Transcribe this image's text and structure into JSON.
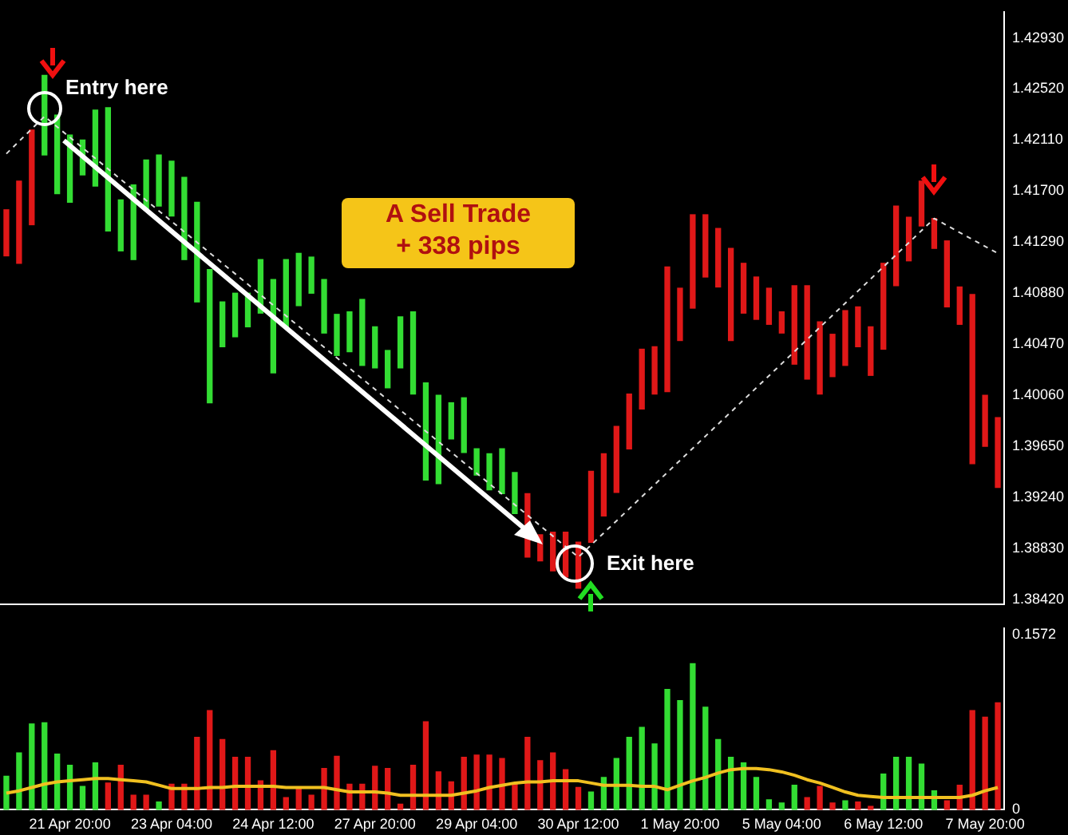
{
  "chart_data": [
    {
      "type": "bar",
      "tick_labels": "y",
      "categories": [
        null,
        null,
        null,
        null,
        null,
        null,
        null,
        null,
        null,
        null,
        null,
        null,
        null,
        null,
        null,
        null,
        null,
        null,
        null,
        null,
        null,
        null,
        null,
        null,
        null,
        null,
        null,
        null,
        null,
        null,
        null,
        null,
        null,
        null,
        null,
        null,
        null,
        null,
        null,
        null,
        null,
        null,
        null,
        null,
        null,
        null,
        null,
        null,
        null,
        null,
        null,
        null,
        null,
        null,
        null,
        null,
        null,
        null,
        null,
        null,
        null,
        null,
        null,
        null,
        null,
        null,
        null,
        null,
        null,
        null,
        null,
        null,
        null,
        null,
        null,
        null,
        null,
        null,
        null
      ],
      "ylim": [
        1.3838,
        1.4314
      ],
      "yticks": [
        {
          "value": 1.3842,
          "label": "1.38420"
        },
        {
          "value": 1.3883,
          "label": "1.38830"
        },
        {
          "value": 1.3924,
          "label": "1.39240"
        },
        {
          "value": 1.3965,
          "label": "1.39650"
        },
        {
          "value": 1.4006,
          "label": "1.40060"
        },
        {
          "value": 1.4047,
          "label": "1.40470"
        },
        {
          "value": 1.4088,
          "label": "1.40880"
        },
        {
          "value": 1.4129,
          "label": "1.41290"
        },
        {
          "value": 1.417,
          "label": "1.41700"
        },
        {
          "value": 1.4211,
          "label": "1.42110"
        },
        {
          "value": 1.4252,
          "label": "1.42520"
        },
        {
          "value": 1.4293,
          "label": "1.42930"
        }
      ],
      "annotations": [
        "Entry here",
        "A Sell Trade",
        "+ 338 pips",
        "Exit here"
      ],
      "series": [
        {
          "colors": [
            "#e01818",
            "#e01818",
            "#e01818",
            "#33dd33",
            "#33dd33",
            "#33dd33",
            "#33dd33",
            "#33dd33",
            "#33dd33",
            "#33dd33",
            "#33dd33",
            "#33dd33",
            "#33dd33",
            "#33dd33",
            "#33dd33",
            "#33dd33",
            "#33dd33",
            "#33dd33",
            "#33dd33",
            "#33dd33",
            "#33dd33",
            "#33dd33",
            "#33dd33",
            "#33dd33",
            "#33dd33",
            "#33dd33",
            "#33dd33",
            "#33dd33",
            "#33dd33",
            "#33dd33",
            "#33dd33",
            "#33dd33",
            "#33dd33",
            "#33dd33",
            "#33dd33",
            "#33dd33",
            "#33dd33",
            "#33dd33",
            "#33dd33",
            "#33dd33",
            "#33dd33",
            "#e01818",
            "#e01818",
            "#e01818",
            "#e01818",
            "#e01818",
            "#e01818",
            "#e01818",
            "#e01818",
            "#e01818",
            "#e01818",
            "#e01818",
            "#e01818",
            "#e01818",
            "#e01818",
            "#e01818",
            "#e01818",
            "#e01818",
            "#e01818",
            "#e01818",
            "#e01818",
            "#e01818",
            "#e01818",
            "#e01818",
            "#e01818",
            "#e01818",
            "#e01818",
            "#e01818",
            "#e01818",
            "#e01818",
            "#e01818",
            "#e01818",
            "#e01818",
            "#e01818",
            "#e01818",
            "#e01818",
            "#e01818",
            "#e01818",
            "#e01818"
          ],
          "base": [
            1.4118,
            1.4112,
            1.4143,
            1.4199,
            1.4168,
            1.4161,
            1.4183,
            1.4174,
            1.4138,
            1.4122,
            1.4115,
            1.4155,
            1.4158,
            1.415,
            1.4115,
            1.4081,
            1.4,
            1.4045,
            1.4053,
            1.4061,
            1.4072,
            1.4024,
            1.4061,
            1.4078,
            1.4088,
            1.4056,
            1.4038,
            1.4041,
            1.403,
            1.4028,
            1.4012,
            1.4028,
            1.4007,
            1.3938,
            1.3935,
            1.3971,
            1.396,
            1.3942,
            1.393,
            1.3927,
            1.3911,
            1.3876,
            1.3873,
            1.3865,
            1.386,
            1.3851,
            1.3888,
            1.3909,
            1.3928,
            1.3963,
            1.3995,
            1.4007,
            1.4009,
            1.405,
            1.4076,
            1.4101,
            1.4093,
            1.405,
            1.4072,
            1.4067,
            1.4063,
            1.4056,
            1.4031,
            1.4019,
            1.4007,
            1.4021,
            1.403,
            1.4045,
            1.4022,
            1.4043,
            1.4094,
            1.4114,
            1.4142,
            1.4124,
            1.4077,
            1.4063,
            1.3951,
            1.3965,
            1.3932
          ],
          "values": [
            0.0037,
            0.0066,
            0.0076,
            0.0064,
            0.0063,
            0.0054,
            0.0028,
            0.0061,
            0.0099,
            0.0041,
            0.006,
            0.004,
            0.0041,
            0.0044,
            0.0066,
            0.008,
            0.0107,
            0.0036,
            0.0035,
            0.0027,
            0.0043,
            0.0075,
            0.0054,
            0.0042,
            0.0029,
            0.0043,
            0.0033,
            0.0032,
            0.0053,
            0.0033,
            0.003,
            0.0041,
            0.0066,
            0.0078,
            0.0071,
            0.0029,
            0.0044,
            0.0021,
            0.0029,
            0.0036,
            0.0033,
            0.0051,
            0.0021,
            0.0031,
            0.0036,
            0.0037,
            0.0057,
            0.005,
            0.0053,
            0.0044,
            0.0048,
            0.0038,
            0.01,
            0.0042,
            0.0075,
            0.005,
            0.0047,
            0.0074,
            0.004,
            0.0034,
            0.0029,
            0.0017,
            0.0063,
            0.0075,
            0.0058,
            0.0034,
            0.0044,
            0.0032,
            0.0039,
            0.0069,
            0.0064,
            0.0035,
            0.0036,
            0.0024,
            0.0053,
            0.003,
            0.0136,
            0.0041,
            0.0056
          ]
        },
        {
          "type": "line",
          "color": "#dddddd",
          "line_style": "dashed",
          "marker": "none",
          "values": [
            1.42,
            null,
            null,
            1.423,
            null,
            null,
            null,
            null,
            null,
            null,
            null,
            null,
            null,
            null,
            null,
            null,
            null,
            null,
            null,
            null,
            null,
            null,
            null,
            null,
            null,
            null,
            null,
            null,
            null,
            null,
            null,
            null,
            null,
            null,
            null,
            null,
            null,
            null,
            null,
            null,
            null,
            null,
            null,
            null,
            null,
            1.3876,
            null,
            null,
            null,
            null,
            null,
            null,
            null,
            null,
            null,
            null,
            null,
            null,
            null,
            null,
            null,
            null,
            null,
            null,
            null,
            null,
            null,
            null,
            null,
            null,
            null,
            null,
            null,
            1.4148,
            null,
            null,
            null,
            null,
            1.412
          ]
        }
      ]
    },
    {
      "type": "bar",
      "categories": [
        null,
        null,
        null,
        null,
        null,
        "21 Apr 20:00",
        null,
        null,
        null,
        null,
        null,
        null,
        null,
        "23 Apr 04:00",
        null,
        null,
        null,
        null,
        null,
        null,
        null,
        "24 Apr 12:00",
        null,
        null,
        null,
        null,
        null,
        null,
        null,
        "27 Apr 20:00",
        null,
        null,
        null,
        null,
        null,
        null,
        null,
        "29 Apr 04:00",
        null,
        null,
        null,
        null,
        null,
        null,
        null,
        "30 Apr 12:00",
        null,
        null,
        null,
        null,
        null,
        null,
        null,
        "1 May 20:00",
        null,
        null,
        null,
        null,
        null,
        null,
        null,
        "5 May 04:00",
        null,
        null,
        null,
        null,
        null,
        null,
        null,
        "6 May 12:00",
        null,
        null,
        null,
        null,
        null,
        null,
        null,
        "7 May 20:00",
        null
      ],
      "ylim": [
        0,
        0.163
      ],
      "yticks": [
        0,
        0.1572
      ],
      "series": [
        {
          "colors": [
            "#33dd33",
            "#33dd33",
            "#33dd33",
            "#33dd33",
            "#33dd33",
            "#33dd33",
            "#33dd33",
            "#33dd33",
            "#e01818",
            "#e01818",
            "#e01818",
            "#e01818",
            "#33dd33",
            "#e01818",
            "#e01818",
            "#e01818",
            "#e01818",
            "#e01818",
            "#e01818",
            "#e01818",
            "#e01818",
            "#e01818",
            "#e01818",
            "#e01818",
            "#e01818",
            "#e01818",
            "#e01818",
            "#e01818",
            "#e01818",
            "#e01818",
            "#e01818",
            "#e01818",
            "#e01818",
            "#e01818",
            "#e01818",
            "#e01818",
            "#e01818",
            "#e01818",
            "#e01818",
            "#e01818",
            "#e01818",
            "#e01818",
            "#e01818",
            "#e01818",
            "#e01818",
            "#e01818",
            "#33dd33",
            "#33dd33",
            "#33dd33",
            "#33dd33",
            "#33dd33",
            "#33dd33",
            "#33dd33",
            "#33dd33",
            "#33dd33",
            "#33dd33",
            "#33dd33",
            "#33dd33",
            "#33dd33",
            "#33dd33",
            "#33dd33",
            "#33dd33",
            "#33dd33",
            "#e01818",
            "#e01818",
            "#e01818",
            "#33dd33",
            "#e01818",
            "#e01818",
            "#33dd33",
            "#33dd33",
            "#33dd33",
            "#33dd33",
            "#33dd33",
            "#e01818",
            "#e01818",
            "#e01818",
            "#e01818",
            "#e01818"
          ],
          "values": [
            0.03,
            0.051,
            0.077,
            0.078,
            0.05,
            0.04,
            0.021,
            0.042,
            0.024,
            0.04,
            0.013,
            0.013,
            0.007,
            0.023,
            0.023,
            0.065,
            0.089,
            0.063,
            0.047,
            0.047,
            0.026,
            0.053,
            0.011,
            0.02,
            0.013,
            0.037,
            0.048,
            0.023,
            0.023,
            0.039,
            0.037,
            0.005,
            0.04,
            0.079,
            0.034,
            0.025,
            0.047,
            0.049,
            0.049,
            0.046,
            0.023,
            0.065,
            0.044,
            0.051,
            0.036,
            0.02,
            0.016,
            0.029,
            0.046,
            0.065,
            0.074,
            0.059,
            0.108,
            0.098,
            0.131,
            0.092,
            0.063,
            0.047,
            0.042,
            0.029,
            0.009,
            0.006,
            0.022,
            0.011,
            0.021,
            0.006,
            0.008,
            0.007,
            0.003,
            0.032,
            0.047,
            0.047,
            0.041,
            0.017,
            0.008,
            0.022,
            0.089,
            0.083,
            0.096
          ]
        },
        {
          "type": "line",
          "color": "#f0c020",
          "marker": "none",
          "values": [
            0.015,
            0.017,
            0.02,
            0.023,
            0.025,
            0.026,
            0.027,
            0.028,
            0.028,
            0.027,
            0.026,
            0.025,
            0.022,
            0.019,
            0.019,
            0.019,
            0.02,
            0.02,
            0.021,
            0.021,
            0.021,
            0.021,
            0.02,
            0.02,
            0.02,
            0.02,
            0.018,
            0.016,
            0.016,
            0.016,
            0.015,
            0.013,
            0.013,
            0.013,
            0.013,
            0.013,
            0.015,
            0.017,
            0.02,
            0.022,
            0.024,
            0.025,
            0.025,
            0.026,
            0.026,
            0.026,
            0.024,
            0.022,
            0.022,
            0.022,
            0.021,
            0.021,
            0.018,
            0.022,
            0.026,
            0.029,
            0.033,
            0.036,
            0.037,
            0.037,
            0.036,
            0.034,
            0.031,
            0.027,
            0.024,
            0.02,
            0.016,
            0.013,
            0.012,
            0.011,
            0.011,
            0.011,
            0.011,
            0.011,
            0.011,
            0.011,
            0.013,
            0.017,
            0.02
          ]
        }
      ]
    }
  ]
}
